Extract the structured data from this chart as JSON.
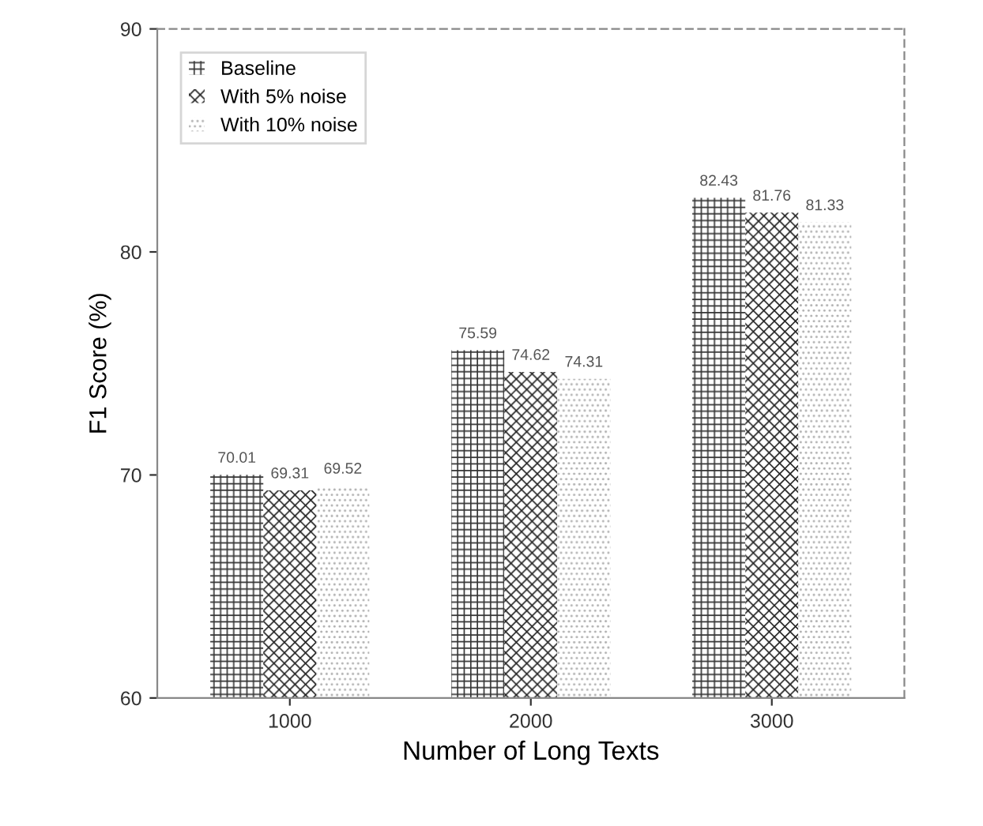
{
  "chart_data": {
    "type": "bar",
    "xlabel": "Number of Long Texts",
    "ylabel": "F1 Score (%)",
    "categories": [
      "1000",
      "2000",
      "3000"
    ],
    "series": [
      {
        "name": "Baseline",
        "color": "#333333",
        "values": [
          70.01,
          75.59,
          82.43
        ]
      },
      {
        "name": "With 5% noise",
        "color": "#222222",
        "values": [
          69.31,
          74.62,
          81.76
        ]
      },
      {
        "name": "With 10% noise",
        "color": "#b0b0b0",
        "values": [
          69.52,
          74.31,
          81.33
        ]
      }
    ],
    "ylim": [
      60,
      90
    ],
    "yticks": [
      60,
      70,
      80,
      90
    ],
    "grid": false,
    "legend": "top left",
    "data_labels": true
  }
}
